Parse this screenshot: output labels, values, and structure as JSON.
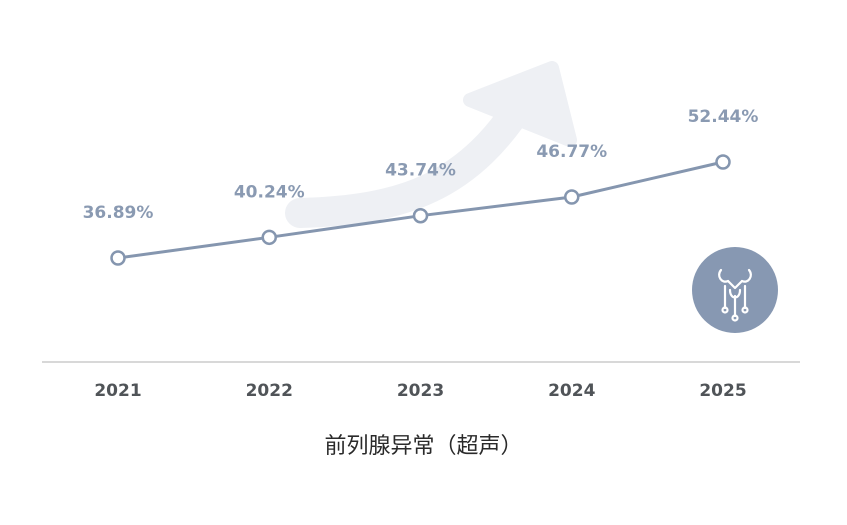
{
  "chart_data": {
    "type": "line",
    "title": "",
    "xlabel": "前列腺异常（超声）",
    "ylabel": "",
    "categories": [
      "2021",
      "2022",
      "2023",
      "2024",
      "2025"
    ],
    "values": [
      36.89,
      40.24,
      43.74,
      46.77,
      52.44
    ],
    "data_labels": [
      "36.89%",
      "40.24%",
      "43.74%",
      "46.77%",
      "52.44%"
    ],
    "ylim": [
      20,
      60
    ],
    "grid": false,
    "legend": "none"
  },
  "colors": {
    "line": "#8596af",
    "label": "#8a9ab2",
    "arrow": "#eef0f4",
    "badge": "#8798b2",
    "axis": "#d8d8d8",
    "tick": "#505458"
  },
  "icons": {
    "badge": "prostate-organ-icon",
    "trend": "trend-arrow"
  }
}
